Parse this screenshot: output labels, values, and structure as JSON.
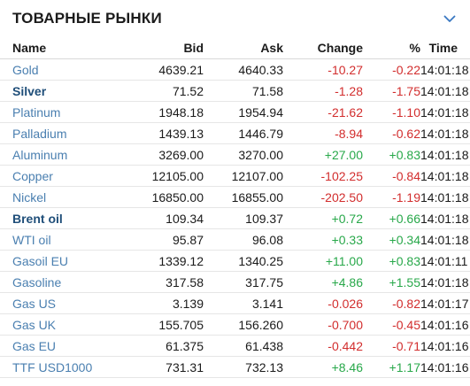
{
  "widget": {
    "title": "ТОВАРНЫЕ РЫНКИ",
    "collapse_icon": "chevron-down-icon"
  },
  "columns": {
    "name": "Name",
    "bid": "Bid",
    "ask": "Ask",
    "change": "Change",
    "pct": "%",
    "time": "Time"
  },
  "colors": {
    "negative": "#d22d2d",
    "positive": "#28a84a",
    "link": "#4a7fb0",
    "link_bold": "#1f4e79"
  },
  "rows": [
    {
      "name": "Gold",
      "bid": "4639.21",
      "ask": "4640.33",
      "change": "-10.27",
      "pct": "-0.22",
      "time": "14:01:18",
      "dir": "neg",
      "bold": false
    },
    {
      "name": "Silver",
      "bid": "71.52",
      "ask": "71.58",
      "change": "-1.28",
      "pct": "-1.75",
      "time": "14:01:18",
      "dir": "neg",
      "bold": true
    },
    {
      "name": "Platinum",
      "bid": "1948.18",
      "ask": "1954.94",
      "change": "-21.62",
      "pct": "-1.10",
      "time": "14:01:18",
      "dir": "neg",
      "bold": false
    },
    {
      "name": "Palladium",
      "bid": "1439.13",
      "ask": "1446.79",
      "change": "-8.94",
      "pct": "-0.62",
      "time": "14:01:18",
      "dir": "neg",
      "bold": false
    },
    {
      "name": "Aluminum",
      "bid": "3269.00",
      "ask": "3270.00",
      "change": "+27.00",
      "pct": "+0.83",
      "time": "14:01:18",
      "dir": "pos",
      "bold": false
    },
    {
      "name": "Copper",
      "bid": "12105.00",
      "ask": "12107.00",
      "change": "-102.25",
      "pct": "-0.84",
      "time": "14:01:18",
      "dir": "neg",
      "bold": false
    },
    {
      "name": "Nickel",
      "bid": "16850.00",
      "ask": "16855.00",
      "change": "-202.50",
      "pct": "-1.19",
      "time": "14:01:18",
      "dir": "neg",
      "bold": false
    },
    {
      "name": "Brent oil",
      "bid": "109.34",
      "ask": "109.37",
      "change": "+0.72",
      "pct": "+0.66",
      "time": "14:01:18",
      "dir": "pos",
      "bold": true
    },
    {
      "name": "WTI oil",
      "bid": "95.87",
      "ask": "96.08",
      "change": "+0.33",
      "pct": "+0.34",
      "time": "14:01:18",
      "dir": "pos",
      "bold": false
    },
    {
      "name": "Gasoil EU",
      "bid": "1339.12",
      "ask": "1340.25",
      "change": "+11.00",
      "pct": "+0.83",
      "time": "14:01:11",
      "dir": "pos",
      "bold": false
    },
    {
      "name": "Gasoline",
      "bid": "317.58",
      "ask": "317.75",
      "change": "+4.86",
      "pct": "+1.55",
      "time": "14:01:18",
      "dir": "pos",
      "bold": false
    },
    {
      "name": "Gas US",
      "bid": "3.139",
      "ask": "3.141",
      "change": "-0.026",
      "pct": "-0.82",
      "time": "14:01:17",
      "dir": "neg",
      "bold": false
    },
    {
      "name": "Gas UK",
      "bid": "155.705",
      "ask": "156.260",
      "change": "-0.700",
      "pct": "-0.45",
      "time": "14:01:16",
      "dir": "neg",
      "bold": false
    },
    {
      "name": "Gas EU",
      "bid": "61.375",
      "ask": "61.438",
      "change": "-0.442",
      "pct": "-0.71",
      "time": "14:01:16",
      "dir": "neg",
      "bold": false
    },
    {
      "name": "TTF USD1000",
      "bid": "731.31",
      "ask": "732.13",
      "change": "+8.46",
      "pct": "+1.17",
      "time": "14:01:16",
      "dir": "pos",
      "bold": false
    }
  ]
}
